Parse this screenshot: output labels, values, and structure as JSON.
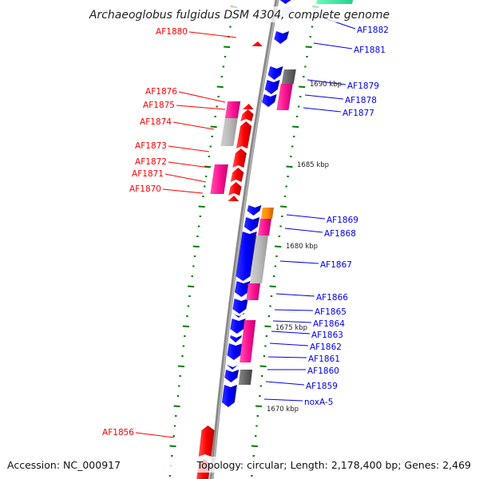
{
  "title": "Archaeoglobus fulgidus DSM 4304, complete genome",
  "footer": {
    "accession": "Accession: NC_000917",
    "topology": "Topology: circular; Length: 2,178,400 bp; Genes: 2,469"
  },
  "colors": {
    "reverse_gene": "#ff0000",
    "forward_gene": "#0000ff",
    "pink": "#ff1493",
    "gray": "#bbbbbb",
    "dark_gray": "#666666",
    "orange": "#ff8c00",
    "tick": "#008000",
    "backbone": "#888888"
  },
  "left_labels": [
    "AF1880",
    "AF1876",
    "AF1875",
    "AF1874",
    "AF1873",
    "AF1872",
    "AF1871",
    "AF1870",
    "AF1856"
  ],
  "right_labels": [
    "AF1882",
    "AF1881",
    "AF1879",
    "AF1878",
    "AF1877",
    "AF1869",
    "AF1868",
    "AF1867",
    "AF1866",
    "AF1865",
    "AF1864",
    "AF1863",
    "AF1862",
    "AF1861",
    "AF1860",
    "AF1859",
    "noxA-5"
  ],
  "scale_labels": [
    "1690 kbp",
    "1685 kbp",
    "1680 kbp",
    "1675 kbp",
    "1670 kbp"
  ]
}
